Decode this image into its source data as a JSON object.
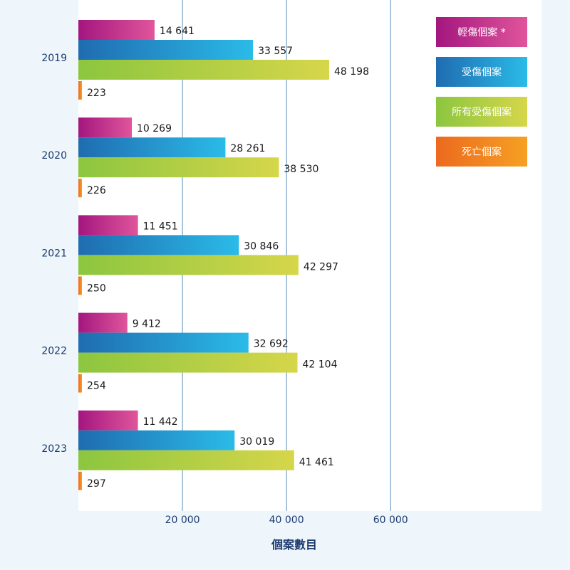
{
  "chart_data": {
    "type": "bar",
    "orientation": "horizontal",
    "categories": [
      "2019",
      "2020",
      "2021",
      "2022",
      "2023"
    ],
    "series": [
      {
        "name": "輕傷個案 *",
        "values": [
          14641,
          10269,
          11451,
          9412,
          11442
        ],
        "value_labels": [
          "14 641",
          "10 269",
          "11 451",
          "9 412",
          "11 442"
        ],
        "colors": [
          "#a3167f",
          "#e0559b"
        ]
      },
      {
        "name": "受傷個案",
        "values": [
          33557,
          28261,
          30846,
          32692,
          30019
        ],
        "value_labels": [
          "33 557",
          "28 261",
          "30 846",
          "32 692",
          "30 019"
        ],
        "colors": [
          "#1f6cb0",
          "#2bbbe8"
        ]
      },
      {
        "name": "所有受傷個案",
        "values": [
          48198,
          38530,
          42297,
          42104,
          41461
        ],
        "value_labels": [
          "48 198",
          "38 530",
          "42 297",
          "42 104",
          "41 461"
        ],
        "colors": [
          "#8cc63f",
          "#d6d64a"
        ]
      },
      {
        "name": "死亡個案",
        "values": [
          223,
          226,
          250,
          254,
          297
        ],
        "value_labels": [
          "223",
          "226",
          "250",
          "254",
          "297"
        ],
        "colors": [
          "#ec6a1f",
          "#f6a023"
        ]
      }
    ],
    "xlabel": "個案數目",
    "xticks": [
      20000,
      40000,
      60000
    ],
    "xtick_labels": [
      "20 000",
      "40 000",
      "60 000"
    ],
    "xlim": [
      0,
      89000
    ],
    "grid": "vertical",
    "legend": "top-right"
  }
}
